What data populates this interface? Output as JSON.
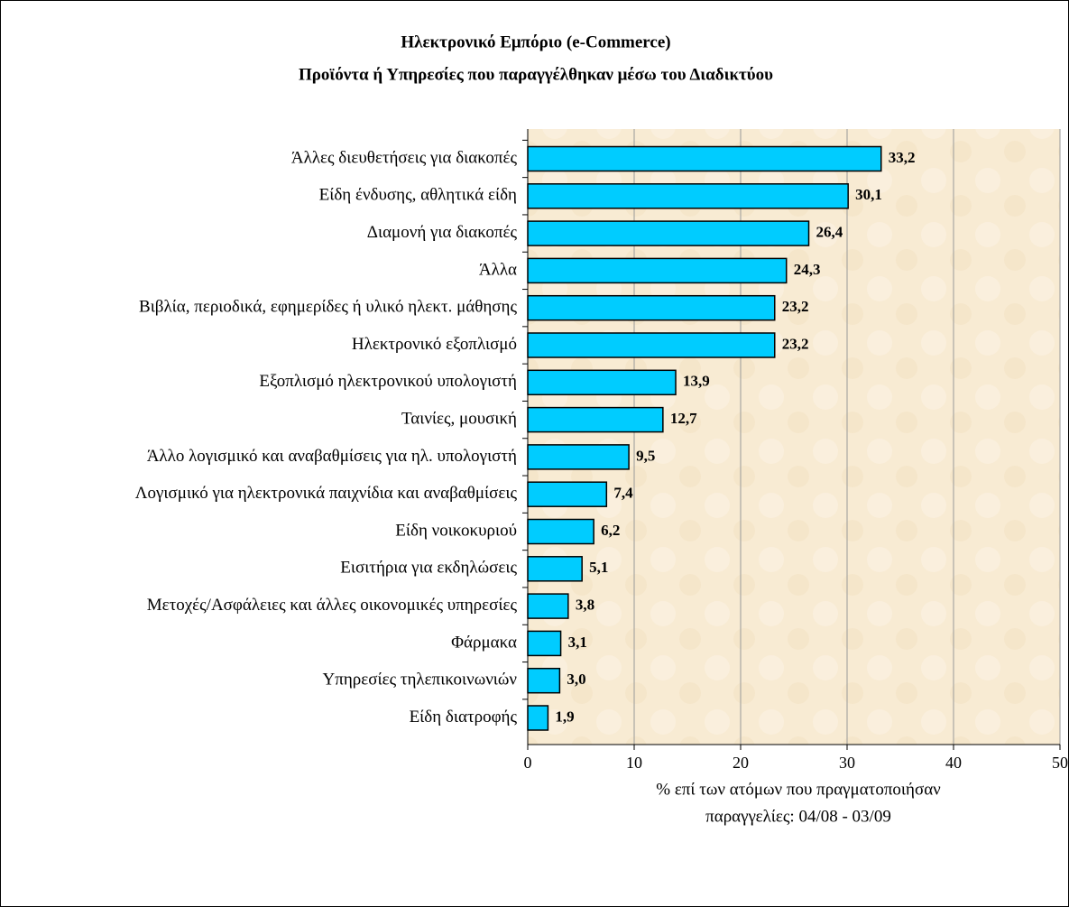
{
  "chart_data": {
    "type": "bar",
    "orientation": "horizontal",
    "title": "Ηλεκτρονικό Εμπόριο (e-Commerce)",
    "subtitle": "Προϊόντα ή Υπηρεσίες που παραγγέλθηκαν μέσω του Διαδικτύου",
    "xlabel": [
      "% επί των ατόμων που πραγματοποιήσαν",
      "παραγγελίες: 04/08 - 03/09"
    ],
    "categories": [
      "Άλλες διευθετήσεις για διακοπές",
      "Είδη ένδυσης, αθλητικά είδη",
      "Διαμονή για διακοπές",
      "Άλλα",
      "Βιβλία, περιοδικά, εφημερίδες ή υλικό ηλεκτ. μάθησης",
      "Ηλεκτρονικό εξοπλισμό",
      "Εξοπλισμό ηλεκτρονικού υπολογιστή",
      "Ταινίες, μουσική",
      "Άλλο λογισμικό και αναβαθμίσεις για ηλ. υπολογιστή",
      "Λογισμικό για ηλεκτρονικά παιχνίδια και αναβαθμίσεις",
      "Είδη νοικοκυριού",
      "Εισιτήρια για εκδηλώσεις",
      "Μετοχές/Ασφάλειες και άλλες οικονομικές υπηρεσίες",
      "Φάρμακα",
      "Υπηρεσίες τηλεπικοινωνιών",
      "Είδη διατροφής"
    ],
    "values": [
      33.2,
      30.1,
      26.4,
      24.3,
      23.2,
      23.2,
      13.9,
      12.7,
      9.5,
      7.4,
      6.2,
      5.1,
      3.8,
      3.1,
      3.0,
      1.9
    ],
    "value_labels": [
      "33,2",
      "30,1",
      "26,4",
      "24,3",
      "23,2",
      "23,2",
      "13,9",
      "12,7",
      "9,5",
      "7,4",
      "6,2",
      "5,1",
      "3,8",
      "3,1",
      "3,0",
      "1,9"
    ],
    "color": "#00ccff",
    "xlim": [
      0,
      50
    ],
    "xticks": [
      0,
      10,
      20,
      30,
      40,
      50
    ],
    "grid": true
  }
}
